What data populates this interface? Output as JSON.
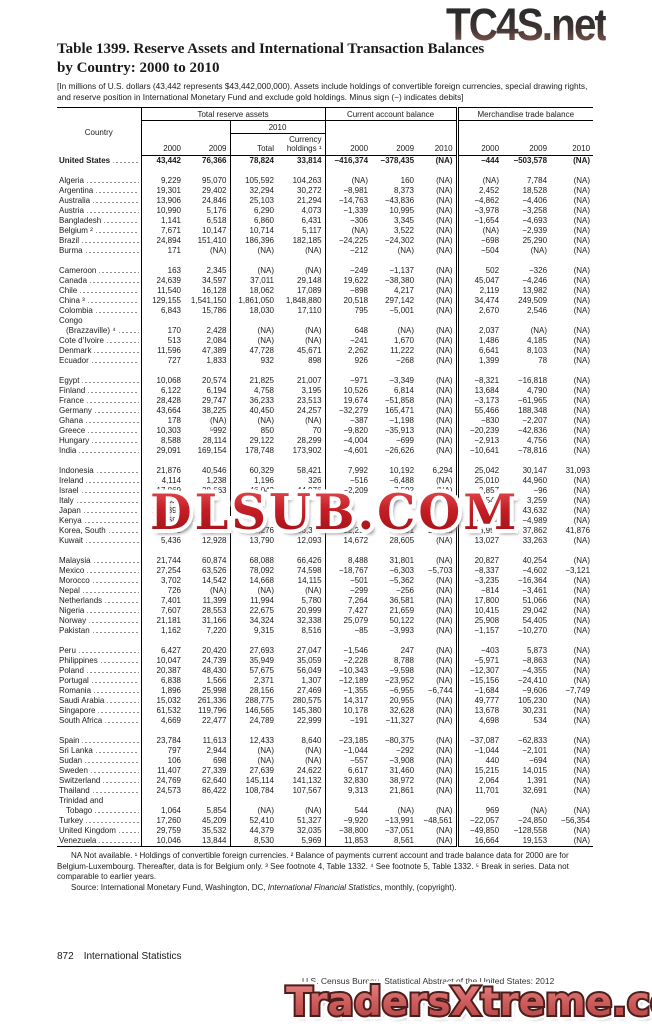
{
  "watermarks": {
    "top": "TC4S.net",
    "center": "DLSUB.COM",
    "bottom": "TradersXtreme.com"
  },
  "title": {
    "line1": "Table 1399. Reserve Assets and International Transaction Balances",
    "line2": "by Country: 2000 to 2010"
  },
  "bracket_note": "[In millions of U.S. dollars (43,442 represents $43,442,000,000). Assets include holdings of convertible foreign currencies, special drawing rights, and reserve position in International Monetary Fund and exclude gold holdings. Minus sign (−) indicates debits]",
  "table": {
    "stub_header": "Country",
    "group_headers": [
      "Total reserve assets",
      "Current account balance",
      "Merchandise trade balance"
    ],
    "sub_header_2010": "2010",
    "col_headers": [
      "2000",
      "2009",
      "Total",
      "Currency holdings ¹",
      "2000",
      "2009",
      "2010",
      "2000",
      "2009",
      "2010"
    ],
    "rows": [
      {
        "country": "United States",
        "bold": true,
        "values": [
          "43,442",
          "76,366",
          "78,824",
          "33,814",
          "−416,374",
          "−378,435",
          "(NA)",
          "−444",
          "−503,578",
          "(NA)"
        ]
      },
      {
        "spacer": true
      },
      {
        "country": "Algeria",
        "values": [
          "9,229",
          "95,070",
          "105,592",
          "104,263",
          "(NA)",
          "160",
          "(NA)",
          "(NA)",
          "7,784",
          "(NA)"
        ]
      },
      {
        "country": "Argentina",
        "values": [
          "19,301",
          "29,402",
          "32,294",
          "30,272",
          "−8,981",
          "8,373",
          "(NA)",
          "2,452",
          "18,528",
          "(NA)"
        ]
      },
      {
        "country": "Australia",
        "values": [
          "13,906",
          "24,846",
          "25,103",
          "21,294",
          "−14,763",
          "−43,836",
          "(NA)",
          "−4,862",
          "−4,406",
          "(NA)"
        ]
      },
      {
        "country": "Austria",
        "values": [
          "10,990",
          "5,176",
          "6,290",
          "4,073",
          "−1,339",
          "10,995",
          "(NA)",
          "−3,978",
          "−3,258",
          "(NA)"
        ]
      },
      {
        "country": "Bangladesh",
        "values": [
          "1,141",
          "6,518",
          "6,860",
          "6,431",
          "−306",
          "3,345",
          "(NA)",
          "−1,654",
          "−4,693",
          "(NA)"
        ]
      },
      {
        "country": "Belgium ²",
        "values": [
          "7,671",
          "10,147",
          "10,714",
          "5,117",
          "(NA)",
          "3,522",
          "(NA)",
          "(NA)",
          "−2,939",
          "(NA)"
        ]
      },
      {
        "country": "Brazil",
        "values": [
          "24,894",
          "151,410",
          "186,396",
          "182,185",
          "−24,225",
          "−24,302",
          "(NA)",
          "−698",
          "25,290",
          "(NA)"
        ]
      },
      {
        "country": "Burma",
        "values": [
          "171",
          "(NA)",
          "(NA)",
          "(NA)",
          "−212",
          "(NA)",
          "(NA)",
          "−504",
          "(NA)",
          "(NA)"
        ]
      },
      {
        "spacer": true
      },
      {
        "country": "Cameroon",
        "values": [
          "163",
          "2,345",
          "(NA)",
          "(NA)",
          "−249",
          "−1,137",
          "(NA)",
          "502",
          "−326",
          "(NA)"
        ]
      },
      {
        "country": "Canada",
        "values": [
          "24,639",
          "34,597",
          "37,011",
          "29,148",
          "19,622",
          "−38,380",
          "(NA)",
          "45,047",
          "−4,246",
          "(NA)"
        ]
      },
      {
        "country": "Chile",
        "values": [
          "11,540",
          "16,128",
          "18,062",
          "17,089",
          "−898",
          "4,217",
          "(NA)",
          "2,119",
          "13,982",
          "(NA)"
        ]
      },
      {
        "country": "China ³",
        "values": [
          "129,155",
          "1,541,150",
          "1,861,050",
          "1,848,880",
          "20,518",
          "297,142",
          "(NA)",
          "34,474",
          "249,509",
          "(NA)"
        ]
      },
      {
        "country": "Colombia",
        "values": [
          "6,843",
          "15,786",
          "18,030",
          "17,110",
          "795",
          "−5,001",
          "(NA)",
          "2,670",
          "2,546",
          "(NA)"
        ]
      },
      {
        "country": "Congo",
        "label_only": true
      },
      {
        "country": "(Brazzaville) ⁴",
        "indent": true,
        "values": [
          "170",
          "2,428",
          "(NA)",
          "(NA)",
          "648",
          "(NA)",
          "(NA)",
          "2,037",
          "(NA)",
          "(NA)"
        ]
      },
      {
        "country": "Cote d’Ivoire",
        "values": [
          "513",
          "2,084",
          "(NA)",
          "(NA)",
          "−241",
          "1,670",
          "(NA)",
          "1,486",
          "4,185",
          "(NA)"
        ]
      },
      {
        "country": "Denmark",
        "values": [
          "11,596",
          "47,389",
          "47,728",
          "45,671",
          "2,262",
          "11,222",
          "(NA)",
          "6,641",
          "8,103",
          "(NA)"
        ]
      },
      {
        "country": "Ecuador",
        "values": [
          "727",
          "1,833",
          "932",
          "898",
          "926",
          "−268",
          "(NA)",
          "1,399",
          "78",
          "(NA)"
        ]
      },
      {
        "spacer": true
      },
      {
        "country": "Egypt",
        "values": [
          "10,068",
          "20,574",
          "21,825",
          "21,007",
          "−971",
          "−3,349",
          "(NA)",
          "−8,321",
          "−16,818",
          "(NA)"
        ]
      },
      {
        "country": "Finland",
        "values": [
          "6,122",
          "6,194",
          "4,758",
          "3,195",
          "10,526",
          "6,814",
          "(NA)",
          "13,684",
          "4,790",
          "(NA)"
        ]
      },
      {
        "country": "France",
        "values": [
          "28,428",
          "29,747",
          "36,233",
          "23,513",
          "19,674",
          "−51,858",
          "(NA)",
          "−3,173",
          "−61,965",
          "(NA)"
        ]
      },
      {
        "country": "Germany",
        "values": [
          "43,664",
          "38,225",
          "40,450",
          "24,257",
          "−32,279",
          "165,471",
          "(NA)",
          "55,466",
          "188,348",
          "(NA)"
        ]
      },
      {
        "country": "Ghana",
        "values": [
          "178",
          "(NA)",
          "(NA)",
          "(NA)",
          "−387",
          "−1,198",
          "(NA)",
          "−830",
          "−2,207",
          "(NA)"
        ]
      },
      {
        "country": "Greece",
        "values": [
          "10,303",
          "⁵992",
          "850",
          "70",
          "−9,820",
          "−35,913",
          "(NA)",
          "−20,239",
          "−42,836",
          "(NA)"
        ]
      },
      {
        "country": "Hungary",
        "values": [
          "8,588",
          "28,114",
          "29,122",
          "28,299",
          "−4,004",
          "−699",
          "(NA)",
          "−2,913",
          "4,756",
          "(NA)"
        ]
      },
      {
        "country": "India",
        "values": [
          "29,091",
          "169,154",
          "178,748",
          "173,902",
          "−4,601",
          "−26,626",
          "(NA)",
          "−10,641",
          "−78,816",
          "(NA)"
        ]
      },
      {
        "spacer": true
      },
      {
        "country": "Indonesia",
        "values": [
          "21,876",
          "40,546",
          "60,329",
          "58,421",
          "7,992",
          "10,192",
          "6,294",
          "25,042",
          "30,147",
          "31,093"
        ]
      },
      {
        "country": "Ireland",
        "values": [
          "4,114",
          "1,238",
          "1,196",
          "326",
          "−516",
          "−6,488",
          "(NA)",
          "25,010",
          "44,960",
          "(NA)"
        ]
      },
      {
        "country": "Israel",
        "values": [
          "17,869",
          "38,663",
          "46,043",
          "44,976",
          "−2,209",
          "7,592",
          "(NA)",
          "−3,857",
          "−96",
          "(NA)"
        ]
      },
      {
        "country": "Italy",
        "values": [
          "19,623",
          "",
          "",
          "",
          "",
          "",
          "",
          "9,549",
          "3,259",
          "(NA)"
        ]
      },
      {
        "country": "Japan",
        "values": [
          "272,392",
          "",
          "",
          "",
          "",
          "",
          "",
          "116,716",
          "43,632",
          "(NA)"
        ]
      },
      {
        "country": "Kenya",
        "values": [
          "689",
          "",
          "",
          "",
          "",
          "",
          "",
          "−1,262",
          "−4,989",
          "(NA)"
        ]
      },
      {
        "country": "Korea, South",
        "values": [
          "73,781",
          "172,185",
          "189,276",
          "186,312",
          "12,251",
          "32,791",
          "28,213",
          "16,954",
          "37,862",
          "41,876"
        ]
      },
      {
        "country": "Kuwait",
        "values": [
          "5,436",
          "12,928",
          "13,790",
          "12,093",
          "14,672",
          "28,605",
          "(NA)",
          "13,027",
          "33,263",
          "(NA)"
        ]
      },
      {
        "spacer": true
      },
      {
        "country": "Malaysia",
        "values": [
          "21,744",
          "60,874",
          "68,088",
          "66,426",
          "8,488",
          "31,801",
          "(NA)",
          "20,827",
          "40,254",
          "(NA)"
        ]
      },
      {
        "country": "Mexico",
        "values": [
          "27,254",
          "63,526",
          "78,092",
          "74,598",
          "−18,767",
          "−6,303",
          "−5,703",
          "−8,337",
          "−4,602",
          "−3,121"
        ]
      },
      {
        "country": "Morocco",
        "values": [
          "3,702",
          "14,542",
          "14,668",
          "14,115",
          "−501",
          "−5,362",
          "(NA)",
          "−3,235",
          "−16,364",
          "(NA)"
        ]
      },
      {
        "country": "Nepal",
        "values": [
          "726",
          "(NA)",
          "(NA)",
          "(NA)",
          "−299",
          "−256",
          "(NA)",
          "−814",
          "−3,461",
          "(NA)"
        ]
      },
      {
        "country": "Netherlands",
        "values": [
          "7,401",
          "11,399",
          "11,994",
          "5,780",
          "7,264",
          "36,581",
          "(NA)",
          "17,800",
          "51,066",
          "(NA)"
        ]
      },
      {
        "country": "Nigeria",
        "values": [
          "7,607",
          "28,553",
          "22,675",
          "20,999",
          "7,427",
          "21,659",
          "(NA)",
          "10,415",
          "29,042",
          "(NA)"
        ]
      },
      {
        "country": "Norway",
        "values": [
          "21,181",
          "31,166",
          "34,324",
          "32,338",
          "25,079",
          "50,122",
          "(NA)",
          "25,908",
          "54,405",
          "(NA)"
        ]
      },
      {
        "country": "Pakistan",
        "values": [
          "1,162",
          "7,220",
          "9,315",
          "8,516",
          "−85",
          "−3,993",
          "(NA)",
          "−1,157",
          "−10,270",
          "(NA)"
        ]
      },
      {
        "spacer": true
      },
      {
        "country": "Peru",
        "values": [
          "6,427",
          "20,420",
          "27,693",
          "27,047",
          "−1,546",
          "247",
          "(NA)",
          "−403",
          "5,873",
          "(NA)"
        ]
      },
      {
        "country": "Philippines",
        "values": [
          "10,047",
          "24,739",
          "35,949",
          "35,059",
          "−2,228",
          "8,788",
          "(NA)",
          "−5,971",
          "−8,863",
          "(NA)"
        ]
      },
      {
        "country": "Poland",
        "values": [
          "20,387",
          "48,430",
          "57,675",
          "56,049",
          "−10,343",
          "−9,598",
          "(NA)",
          "−12,307",
          "−4,355",
          "(NA)"
        ]
      },
      {
        "country": "Portugal",
        "values": [
          "6,838",
          "1,566",
          "2,371",
          "1,307",
          "−12,189",
          "−23,952",
          "(NA)",
          "−15,156",
          "−24,410",
          "(NA)"
        ]
      },
      {
        "country": "Romania",
        "values": [
          "1,896",
          "25,998",
          "28,156",
          "27,469",
          "−1,355",
          "−6,955",
          "−6,744",
          "−1,684",
          "−9,606",
          "−7,749"
        ]
      },
      {
        "country": "Saudi Arabia",
        "values": [
          "15,032",
          "261,336",
          "288,775",
          "280,575",
          "14,317",
          "20,955",
          "(NA)",
          "49,777",
          "105,230",
          "(NA)"
        ]
      },
      {
        "country": "Singapore",
        "values": [
          "61,532",
          "119,796",
          "146,565",
          "145,380",
          "10,178",
          "32,628",
          "(NA)",
          "13,678",
          "30,231",
          "(NA)"
        ]
      },
      {
        "country": "South Africa",
        "values": [
          "4,669",
          "22,477",
          "24,789",
          "22,999",
          "−191",
          "−11,327",
          "(NA)",
          "4,698",
          "534",
          "(NA)"
        ]
      },
      {
        "spacer": true
      },
      {
        "country": "Spain",
        "values": [
          "23,784",
          "11,613",
          "12,433",
          "8,640",
          "−23,185",
          "−80,375",
          "(NA)",
          "−37,087",
          "−62,833",
          "(NA)"
        ]
      },
      {
        "country": "Sri Lanka",
        "values": [
          "797",
          "2,944",
          "(NA)",
          "(NA)",
          "−1,044",
          "−292",
          "(NA)",
          "−1,044",
          "−2,101",
          "(NA)"
        ]
      },
      {
        "country": "Sudan",
        "values": [
          "106",
          "698",
          "(NA)",
          "(NA)",
          "−557",
          "−3,908",
          "(NA)",
          "440",
          "−694",
          "(NA)"
        ]
      },
      {
        "country": "Sweden",
        "values": [
          "11,407",
          "27,339",
          "27,639",
          "24,622",
          "6,617",
          "31,460",
          "(NA)",
          "15,215",
          "14,015",
          "(NA)"
        ]
      },
      {
        "country": "Switzerland",
        "values": [
          "24,769",
          "62,640",
          "145,114",
          "141,132",
          "32,830",
          "38,972",
          "(NA)",
          "2,064",
          "1,391",
          "(NA)"
        ]
      },
      {
        "country": "Thailand",
        "values": [
          "24,573",
          "86,422",
          "108,784",
          "107,567",
          "9,313",
          "21,861",
          "(NA)",
          "11,701",
          "32,691",
          "(NA)"
        ]
      },
      {
        "country": "Trinidad and",
        "label_only": true
      },
      {
        "country": "Tobago",
        "indent": true,
        "values": [
          "1,064",
          "5,854",
          "(NA)",
          "(NA)",
          "544",
          "(NA)",
          "(NA)",
          "969",
          "(NA)",
          "(NA)"
        ]
      },
      {
        "country": "Turkey",
        "values": [
          "17,260",
          "45,209",
          "52,410",
          "51,327",
          "−9,920",
          "−13,991",
          "−48,561",
          "−22,057",
          "−24,850",
          "−56,354"
        ]
      },
      {
        "country": "United Kingdom",
        "values": [
          "29,759",
          "35,532",
          "44,379",
          "32,035",
          "−38,800",
          "−37,051",
          "(NA)",
          "−49,850",
          "−128,558",
          "(NA)"
        ]
      },
      {
        "country": "Venezuela",
        "values": [
          "10,046",
          "13,844",
          "8,530",
          "5,969",
          "11,853",
          "8,561",
          "(NA)",
          "16,664",
          "19,153",
          "(NA)"
        ]
      }
    ]
  },
  "footnotes": {
    "na_note": "NA Not available. ¹ Holdings of convertible foreign currencies. ² Balance of payments current account and trade balance data for 2000 are for Belgium-Luxembourg. Thereafter, data is for Belgium only. ³ See footnote 4, Table 1332. ⁴ See footnote 5, Table 1332. ⁵ Break in series. Data not comparable to earlier years.",
    "source_prefix": "Source: International Monetary Fund, Washington, DC, ",
    "source_italic": "International Financial Statistics",
    "source_suffix": ", monthly, (copyright)."
  },
  "footer": {
    "page_number": "872",
    "section": "International Statistics",
    "credit": "U.S. Census Bureau, Statistical Abstract of the United States: 2012"
  }
}
